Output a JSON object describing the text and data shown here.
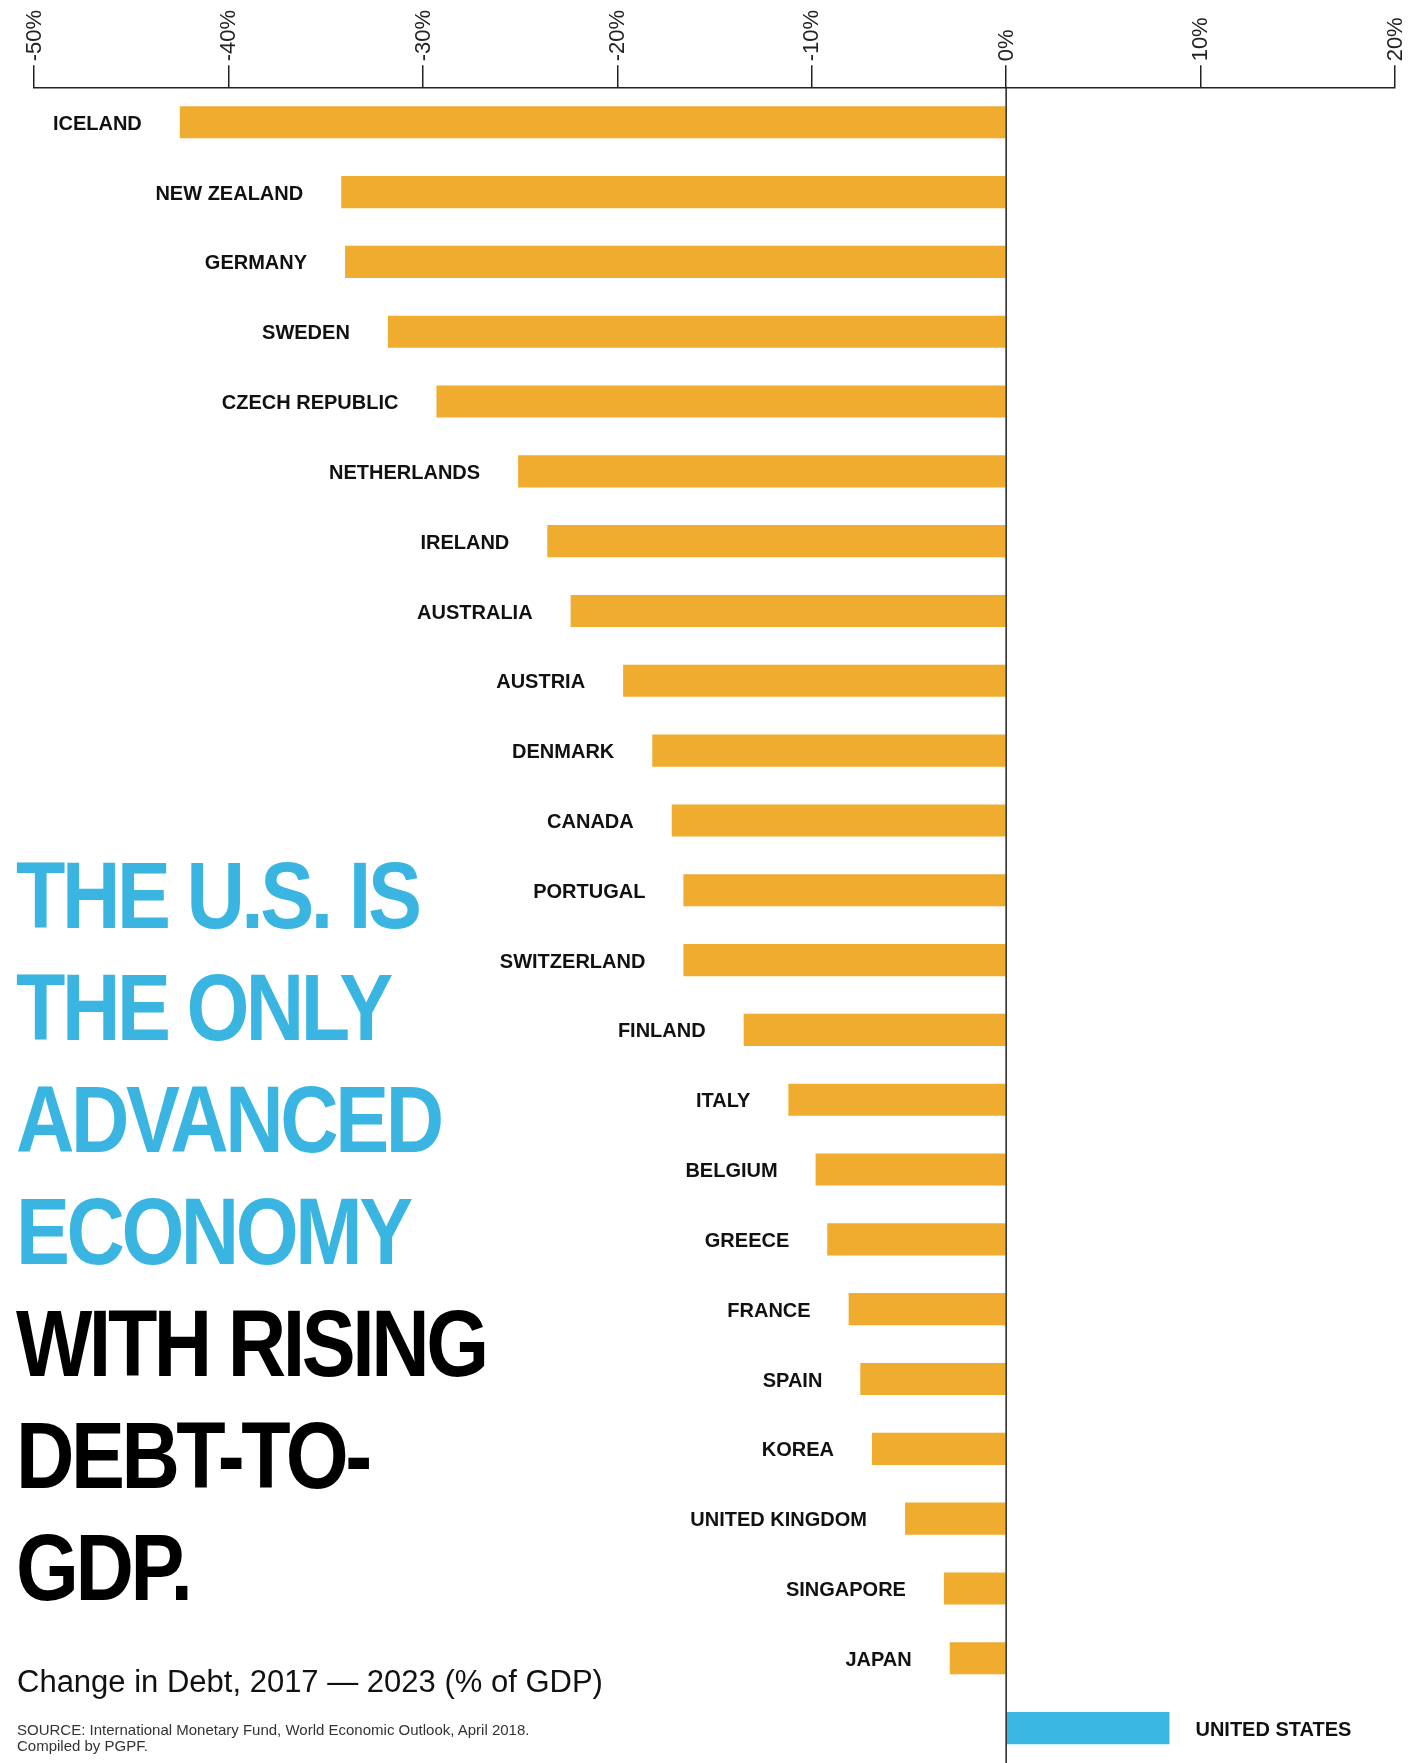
{
  "chart_data": {
    "type": "bar",
    "orientation": "horizontal",
    "title": "THE U.S. IS THE ONLY ADVANCED ECONOMY",
    "subtitle": "WITH RISING DEBT-TO-GDP.",
    "xlabel": "Change in Debt, 2017 — 2023 (% of GDP)",
    "annotations": [
      "SOURCE: International Monetary Fund, World Economic Outlook, April 2018.",
      "Compiled by PGPF."
    ],
    "categories": [
      "ICELAND",
      "NEW ZEALAND",
      "GERMANY",
      "SWEDEN",
      "CZECH REPUBLIC",
      "NETHERLANDS",
      "IRELAND",
      "AUSTRALIA",
      "AUSTRIA",
      "DENMARK",
      "CANADA",
      "PORTUGAL",
      "SWITZERLAND",
      "FINLAND",
      "ITALY",
      "BELGIUM",
      "GREECE",
      "FRANCE",
      "SPAIN",
      "KOREA",
      "UNITED KINGDOM",
      "SINGAPORE",
      "JAPAN",
      "UNITED STATES"
    ],
    "values": [
      -42.5,
      -34.2,
      -34.0,
      -31.8,
      -29.3,
      -25.1,
      -23.6,
      -22.4,
      -19.7,
      -18.2,
      -17.2,
      -16.6,
      -16.6,
      -13.5,
      -11.2,
      -9.8,
      -9.2,
      -8.1,
      -7.5,
      -6.9,
      -5.2,
      -3.2,
      -2.9,
      8.4
    ],
    "colors": [
      "#f0ac2e",
      "#f0ac2e",
      "#f0ac2e",
      "#f0ac2e",
      "#f0ac2e",
      "#f0ac2e",
      "#f0ac2e",
      "#f0ac2e",
      "#f0ac2e",
      "#f0ac2e",
      "#f0ac2e",
      "#f0ac2e",
      "#f0ac2e",
      "#f0ac2e",
      "#f0ac2e",
      "#f0ac2e",
      "#f0ac2e",
      "#f0ac2e",
      "#f0ac2e",
      "#f0ac2e",
      "#f0ac2e",
      "#f0ac2e",
      "#f0ac2e",
      "#3bb7e3"
    ],
    "xlim": [
      -50,
      20
    ],
    "xticks": [
      {
        "value": -50,
        "label": "-50%"
      },
      {
        "value": -40,
        "label": "-40%"
      },
      {
        "value": -30,
        "label": "-30%"
      },
      {
        "value": -20,
        "label": "-20%"
      },
      {
        "value": -10,
        "label": "-10%"
      },
      {
        "value": 0,
        "label": "0%"
      },
      {
        "value": 10,
        "label": "10%"
      },
      {
        "value": 20,
        "label": "20%"
      }
    ],
    "ref_lines": [
      {
        "axis": "x",
        "value": 0,
        "color": "#222222"
      }
    ],
    "grid": false,
    "legend": false
  }
}
